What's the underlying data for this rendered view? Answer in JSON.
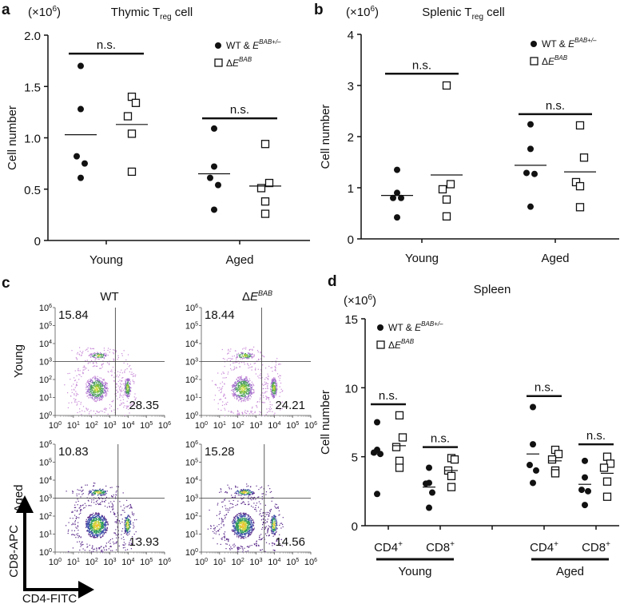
{
  "panels": {
    "a": "a",
    "b": "b",
    "c": "c",
    "d": "d"
  },
  "multiplier": "(×10",
  "multiplier_exp": "6",
  "multiplier_close": ")",
  "legend": {
    "wt": "WT & ",
    "wt_e": "E",
    "wt_sup": "BAB+/–",
    "ko_delta": "Δ",
    "ko_e": "E",
    "ko_sup": "BAB"
  },
  "ns": "n.s.",
  "chart_data": [
    {
      "id": "a",
      "type": "scatter",
      "title": "Thymic T",
      "title_sub": "reg",
      "title_end": " cell",
      "ylabel": "Cell number",
      "ylim": [
        0,
        2.0
      ],
      "yticks": [
        "0",
        "0.5",
        "1.0",
        "1.5",
        "2.0"
      ],
      "ytick_values": [
        0,
        0.5,
        1.0,
        1.5,
        2.0
      ],
      "categories": [
        "Young",
        "Aged"
      ],
      "series": [
        {
          "name": "WT & E BAB+/-",
          "marker": "filled-circle",
          "values": [
            [
              1.7,
              1.28,
              0.82,
              0.75,
              0.61
            ],
            [
              1.09,
              0.72,
              0.61,
              0.54,
              0.3
            ]
          ],
          "means": [
            1.03,
            0.65
          ]
        },
        {
          "name": "ΔE BAB",
          "marker": "open-square",
          "values": [
            [
              1.4,
              1.34,
              1.21,
              1.04,
              0.67
            ],
            [
              0.94,
              0.56,
              0.51,
              0.38,
              0.26
            ]
          ],
          "means": [
            1.13,
            0.53
          ]
        }
      ],
      "significance": [
        {
          "label": "n.s.",
          "y": 1.82
        },
        {
          "label": "n.s.",
          "y": 1.19
        }
      ]
    },
    {
      "id": "b",
      "type": "scatter",
      "title": "Splenic T",
      "title_sub": "reg",
      "title_end": " cell",
      "ylabel": "Cell number",
      "ylim": [
        0,
        4
      ],
      "yticks": [
        "0",
        "1",
        "2",
        "3",
        "4"
      ],
      "ytick_values": [
        0,
        1,
        2,
        3,
        4
      ],
      "categories": [
        "Young",
        "Aged"
      ],
      "series": [
        {
          "name": "WT & E BAB+/-",
          "marker": "filled-circle",
          "values": [
            [
              1.35,
              0.9,
              0.8,
              0.8,
              0.42
            ],
            [
              2.24,
              1.76,
              1.29,
              1.27,
              0.63
            ]
          ],
          "means": [
            0.85,
            1.44
          ]
        },
        {
          "name": "ΔE BAB",
          "marker": "open-square",
          "values": [
            [
              3.0,
              1.07,
              0.97,
              0.77,
              0.44
            ],
            [
              2.22,
              1.59,
              1.11,
              1.03,
              0.62
            ]
          ],
          "means": [
            1.25,
            1.31
          ]
        }
      ],
      "significance": [
        {
          "label": "n.s.",
          "y": 3.23
        },
        {
          "label": "n.s.",
          "y": 2.44
        }
      ]
    },
    {
      "id": "c",
      "type": "scatter",
      "subtype": "flow-cytometry",
      "xlabel": "CD4-FITC",
      "ylabel": "CD8-APC",
      "columns": [
        "WT",
        "ΔE BAB"
      ],
      "col_delta": "Δ",
      "col_e": "E",
      "col_sup": "BAB",
      "rows": [
        "Young",
        "Aged"
      ],
      "axis_range_log10": [
        0,
        6
      ],
      "tick_base": "10",
      "tick_exps": [
        "0",
        "1",
        "2",
        "3",
        "4",
        "5",
        "6"
      ],
      "plots": [
        {
          "row": "Young",
          "col": "WT",
          "cd8_percent": "15.84",
          "cd4_percent": "28.35",
          "gate_x_log10": 3.3,
          "gate_y_log10": 3.0
        },
        {
          "row": "Young",
          "col": "ΔE BAB",
          "cd8_percent": "18.44",
          "cd4_percent": "24.21",
          "gate_x_log10": 3.3,
          "gate_y_log10": 3.0
        },
        {
          "row": "Aged",
          "col": "WT",
          "cd8_percent": "10.83",
          "cd4_percent": "13.93",
          "gate_x_log10": 3.45,
          "gate_y_log10": 3.0
        },
        {
          "row": "Aged",
          "col": "ΔE BAB",
          "cd8_percent": "15.28",
          "cd4_percent": "14.56",
          "gate_x_log10": 3.45,
          "gate_y_log10": 3.0
        }
      ]
    },
    {
      "id": "d",
      "type": "scatter",
      "title": "Spleen",
      "ylabel": "Cell number",
      "ylim": [
        0,
        15
      ],
      "yticks": [
        "0",
        "5",
        "10",
        "15"
      ],
      "ytick_values": [
        0,
        5,
        10,
        15
      ],
      "categories": [
        "CD4",
        "CD8",
        "CD4",
        "CD8"
      ],
      "category_sup": "+",
      "groups": [
        "Young",
        "Aged"
      ],
      "series": [
        {
          "name": "WT & E BAB+/-",
          "marker": "filled-circle",
          "values": [
            [
              7.5,
              5.5,
              5.3,
              5.2,
              2.3
            ],
            [
              4.2,
              3.1,
              3.05,
              2.4,
              1.3
            ],
            [
              8.6,
              5.9,
              4.4,
              4.0,
              3.1
            ],
            [
              4.7,
              3.5,
              2.6,
              2.5,
              1.5
            ]
          ],
          "means": [
            5.2,
            2.8,
            5.2,
            3.0
          ]
        },
        {
          "name": "ΔE BAB",
          "marker": "open-square",
          "values": [
            [
              8.0,
              6.4,
              5.7,
              4.7,
              4.2
            ],
            [
              4.9,
              4.8,
              4.0,
              3.6,
              2.8
            ],
            [
              5.5,
              5.2,
              4.8,
              4.0,
              3.8
            ],
            [
              5.0,
              4.5,
              4.2,
              3.2,
              2.1
            ]
          ],
          "means": [
            5.8,
            4.0,
            4.7,
            3.8
          ]
        }
      ],
      "significance": [
        {
          "label": "n.s.",
          "y": 8.8
        },
        {
          "label": "n.s.",
          "y": 5.7
        },
        {
          "label": "n.s.",
          "y": 9.4
        },
        {
          "label": "n.s.",
          "y": 5.9
        }
      ]
    }
  ]
}
